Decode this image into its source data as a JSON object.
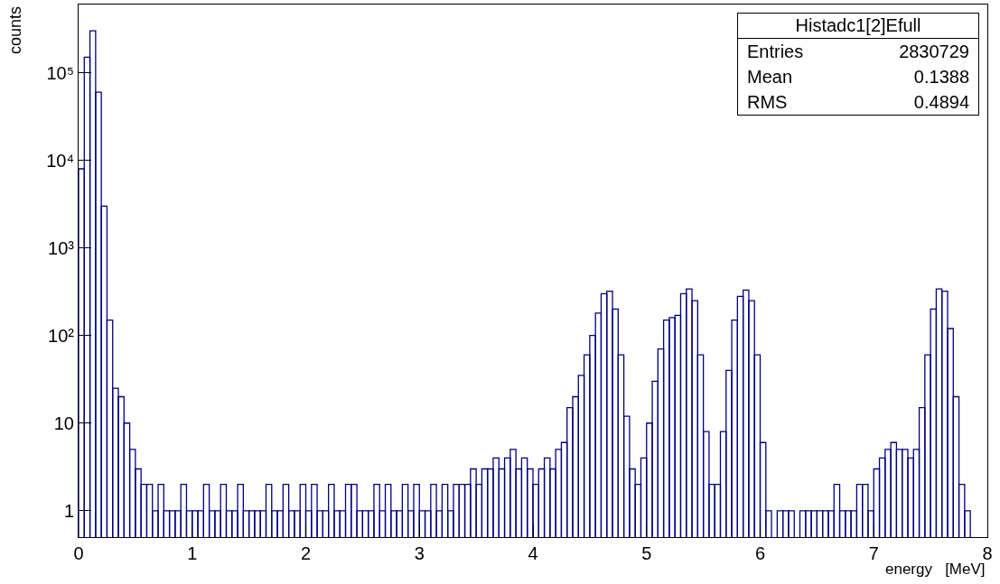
{
  "chart_data": {
    "type": "histogram",
    "xlabel": "energy   [MeV]",
    "ylabel": "counts",
    "annotations": [
      "Histadc1[2]Efull",
      "Entries",
      "2830729",
      "Mean",
      "0.1388",
      "RMS",
      "0.4894"
    ],
    "bins": [
      0,
      0.05,
      0.1,
      0.15,
      0.2,
      0.25,
      0.3,
      0.35,
      0.4,
      0.45,
      0.5,
      0.55,
      0.6,
      0.65,
      0.7,
      0.75,
      0.8,
      0.85,
      0.9,
      0.95,
      1,
      1.05,
      1.1,
      1.15,
      1.2,
      1.25,
      1.3,
      1.35,
      1.4,
      1.45,
      1.5,
      1.55,
      1.6,
      1.65,
      1.7,
      1.75,
      1.8,
      1.85,
      1.9,
      1.95,
      2,
      2.05,
      2.1,
      2.15,
      2.2,
      2.25,
      2.3,
      2.35,
      2.4,
      2.45,
      2.5,
      2.55,
      2.6,
      2.65,
      2.7,
      2.75,
      2.8,
      2.85,
      2.9,
      2.95,
      3,
      3.05,
      3.1,
      3.15,
      3.2,
      3.25,
      3.3,
      3.35,
      3.4,
      3.45,
      3.5,
      3.55,
      3.6,
      3.65,
      3.7,
      3.75,
      3.8,
      3.85,
      3.9,
      3.95,
      4,
      4.05,
      4.1,
      4.15,
      4.2,
      4.25,
      4.3,
      4.35,
      4.4,
      4.45,
      4.5,
      4.55,
      4.6,
      4.65,
      4.7,
      4.75,
      4.8,
      4.85,
      4.9,
      4.95,
      5,
      5.05,
      5.1,
      5.15,
      5.2,
      5.25,
      5.3,
      5.35,
      5.4,
      5.45,
      5.5,
      5.55,
      5.6,
      5.65,
      5.7,
      5.75,
      5.8,
      5.85,
      5.9,
      5.95,
      6,
      6.05,
      6.1,
      6.15,
      6.2,
      6.25,
      6.3,
      6.35,
      6.4,
      6.45,
      6.5,
      6.55,
      6.6,
      6.65,
      6.7,
      6.75,
      6.8,
      6.85,
      6.9,
      6.95,
      7,
      7.05,
      7.1,
      7.15,
      7.2,
      7.25,
      7.3,
      7.35,
      7.4,
      7.45,
      7.5,
      7.55,
      7.6,
      7.65,
      7.7,
      7.75,
      7.8,
      7.85,
      7.9,
      7.95,
      8
    ],
    "values": [
      8000,
      150000,
      300000,
      60000,
      3000,
      150,
      25,
      20,
      10,
      5,
      3,
      2,
      2,
      1,
      2,
      1,
      1,
      1,
      2,
      1,
      1,
      1,
      2,
      1,
      1,
      2,
      1,
      1,
      2,
      1,
      1,
      1,
      1,
      2,
      1,
      1,
      2,
      1,
      1,
      2,
      1,
      2,
      1,
      1,
      2,
      1,
      1,
      2,
      2,
      1,
      1,
      1,
      2,
      1,
      2,
      1,
      1,
      2,
      1,
      2,
      1,
      1,
      2,
      1,
      2,
      1,
      2,
      2,
      2,
      3,
      2,
      3,
      3,
      4,
      3,
      4,
      5,
      3,
      4,
      3,
      2,
      3,
      4,
      3,
      5,
      6,
      15,
      20,
      35,
      60,
      100,
      180,
      300,
      320,
      200,
      60,
      12,
      3,
      2,
      4,
      10,
      30,
      70,
      150,
      160,
      170,
      300,
      340,
      250,
      60,
      8,
      2,
      2,
      8,
      40,
      150,
      280,
      330,
      250,
      60,
      6,
      1,
      null,
      1,
      1,
      1,
      null,
      1,
      1,
      1,
      1,
      1,
      1,
      2,
      1,
      1,
      1,
      2,
      2,
      1,
      3,
      4,
      5,
      6,
      5,
      5,
      4,
      5,
      15,
      60,
      200,
      340,
      320,
      120,
      20,
      2,
      1,
      null,
      null,
      null
    ],
    "color": "#000080",
    "log": "y",
    "grid": false,
    "legend": false,
    "xlim": [
      0,
      8
    ],
    "xticks": [
      0,
      1,
      2,
      3,
      4,
      5,
      6,
      7,
      8
    ],
    "ylim": [
      0.5,
      600000
    ],
    "yticks": [
      1,
      10,
      {
        "value": 100,
        "label": "10²"
      },
      {
        "value": 1000,
        "label": "10³"
      },
      {
        "value": 10000,
        "label": "10⁴"
      },
      {
        "value": 100000,
        "label": "10⁵"
      }
    ]
  }
}
